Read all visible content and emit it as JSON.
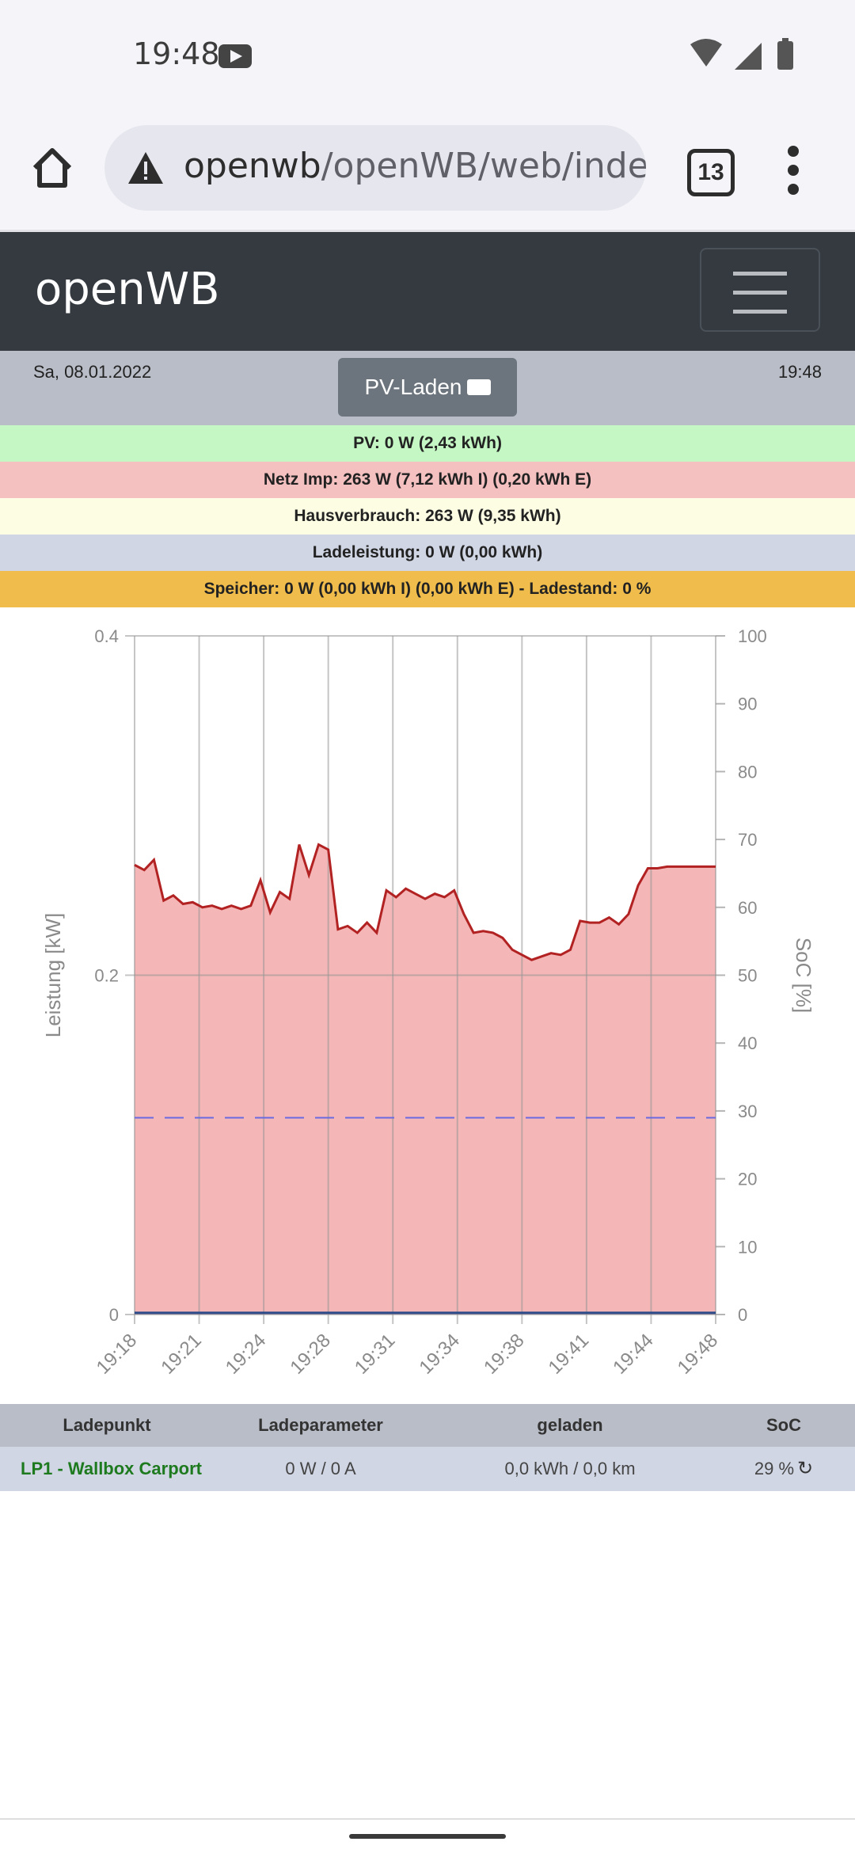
{
  "status_bar": {
    "time": "19:48"
  },
  "browser": {
    "url_host": "openwb",
    "url_path": "/openWB/web/index.",
    "tab_count": "13"
  },
  "navbar": {
    "brand": "openWB"
  },
  "info": {
    "date": "Sa, 08.01.2022",
    "time": "19:48",
    "mode_button": "PV-Laden"
  },
  "rows": {
    "pv": "PV: 0 W (2,43 kWh)",
    "netz": "Netz Imp: 263 W (7,12 kWh I) (0,20 kWh E)",
    "haus": "Hausverbrauch: 263 W (9,35 kWh)",
    "lade": "Ladeleistung: 0 W (0,00 kWh)",
    "speicher": "Speicher: 0 W (0,00 kWh I) (0,00 kWh E) - Ladestand: 0 %"
  },
  "chart_data": {
    "type": "area",
    "ylabel": "Leistung [kW]",
    "y2label": "SoC [%]",
    "ylim": [
      0,
      0.4
    ],
    "y_ticks": [
      "0",
      "0.2",
      "0.4"
    ],
    "y2lim": [
      0,
      100
    ],
    "y2_ticks": [
      "0",
      "10",
      "20",
      "30",
      "40",
      "50",
      "60",
      "70",
      "80",
      "90",
      "100"
    ],
    "x_ticks": [
      "19:18",
      "19:21",
      "19:24",
      "19:28",
      "19:31",
      "19:34",
      "19:38",
      "19:41",
      "19:44",
      "19:48"
    ],
    "series": [
      {
        "color": "#b22222",
        "fill": "#f4b6b6",
        "x_minutes": [
          0,
          0.5,
          1,
          1.5,
          2,
          2.5,
          3,
          3.5,
          4,
          4.5,
          5,
          5.5,
          6,
          6.5,
          7,
          7.5,
          8,
          8.5,
          9,
          9.5,
          10,
          10.5,
          11,
          11.5,
          12,
          12.5,
          13,
          13.5,
          14,
          14.5,
          15,
          15.5,
          16,
          16.5,
          17,
          17.5,
          18,
          18.5,
          19,
          19.5,
          20,
          20.5,
          21,
          21.5,
          22,
          22.5,
          23,
          23.5,
          24,
          24.5,
          25,
          25.5,
          26,
          26.5,
          27,
          27.5,
          28,
          28.5,
          29,
          29.5,
          30
        ],
        "values": [
          0.265,
          0.262,
          0.268,
          0.244,
          0.247,
          0.242,
          0.243,
          0.24,
          0.241,
          0.239,
          0.241,
          0.239,
          0.241,
          0.256,
          0.237,
          0.249,
          0.245,
          0.277,
          0.259,
          0.277,
          0.274,
          0.227,
          0.229,
          0.225,
          0.231,
          0.225,
          0.25,
          0.246,
          0.251,
          0.248,
          0.245,
          0.248,
          0.246,
          0.25,
          0.236,
          0.225,
          0.226,
          0.225,
          0.222,
          0.215,
          0.212,
          0.209,
          0.211,
          0.213,
          0.212,
          0.215,
          0.232,
          0.231,
          0.231,
          0.234,
          0.23,
          0.236,
          0.253,
          0.263,
          0.263,
          0.264,
          0.264,
          0.264,
          0.264,
          0.264,
          0.264
        ]
      },
      {
        "color": "#2a4a8a",
        "x_minutes": [
          0,
          30
        ],
        "values": [
          0.001,
          0.001
        ]
      },
      {
        "color": "#6a6ae0",
        "dashed": true,
        "axis": "y2",
        "x_minutes": [
          0,
          30
        ],
        "values": [
          29,
          29
        ]
      }
    ]
  },
  "loadpoints": {
    "headers": [
      "Ladepunkt",
      "Ladeparameter",
      "geladen",
      "SoC"
    ],
    "rows": [
      {
        "name": "LP1 - Wallbox Carport",
        "param": "0 W / 0 A",
        "loaded": "0,0 kWh / 0,0 km",
        "soc": "29 %"
      }
    ]
  }
}
